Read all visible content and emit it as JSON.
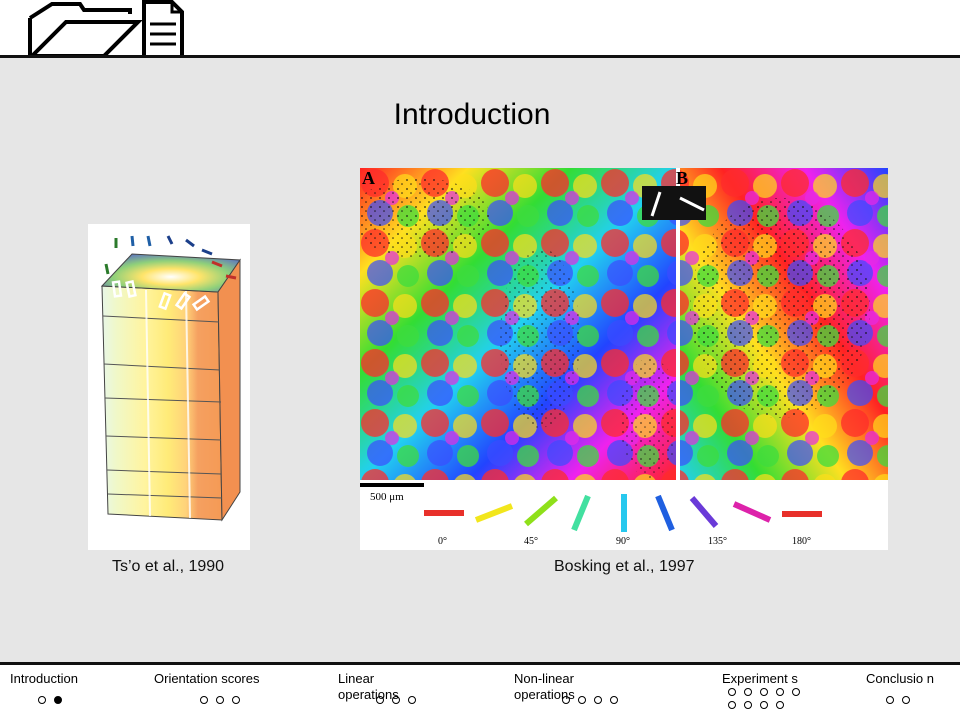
{
  "slide": {
    "title": "Introduction",
    "captions": {
      "left": "Ts’o et al., 1990",
      "right": "Bosking et al., 1997"
    },
    "figure_right": {
      "panel_a_label": "A",
      "panel_b_label": "B",
      "scale_bar_label": "500 μm",
      "orientation_labels": [
        "0°",
        "45°",
        "90°",
        "135°",
        "180°"
      ]
    }
  },
  "nav": [
    {
      "label": "Introduction",
      "dots": 2,
      "active": 2
    },
    {
      "label": "Orientation scores",
      "dots": 3,
      "active": 0
    },
    {
      "label": "Linear operations",
      "dots": 3,
      "active": 0
    },
    {
      "label": "Non-linear operations",
      "dots": 4,
      "active": 0
    },
    {
      "label": "Experiment s",
      "dots": 9,
      "active": 0
    },
    {
      "label": "Conclusio n",
      "dots": 2,
      "active": 0
    }
  ],
  "icons": [
    "folder-icon",
    "document-icon"
  ]
}
